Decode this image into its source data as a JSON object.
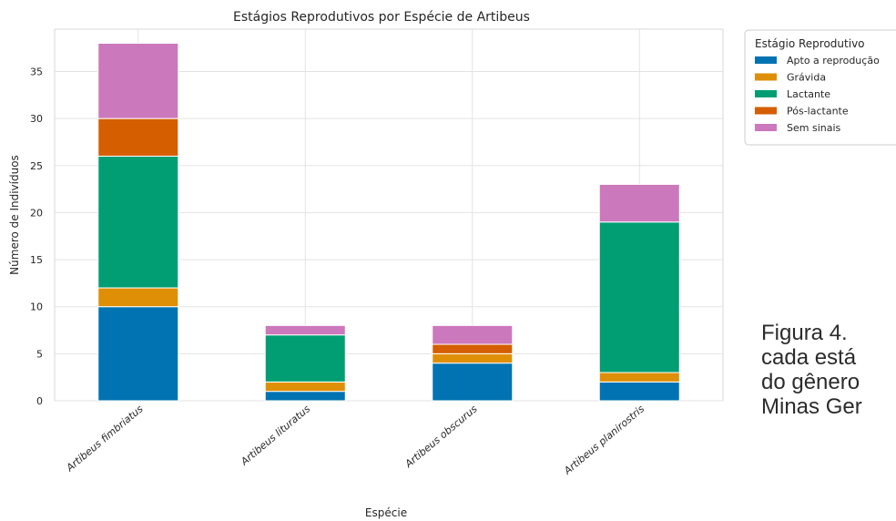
{
  "chart_data": {
    "type": "bar",
    "stacked": true,
    "title": "Estágios Reprodutivos por Espécie de Artibeus",
    "xlabel": "Espécie",
    "ylabel": "Número de Indivíduos",
    "ylim": [
      0,
      39.5
    ],
    "yticks": [
      0,
      5,
      10,
      15,
      20,
      25,
      30,
      35
    ],
    "grid": true,
    "legend_placement": "outside-top-right",
    "legend_title": "Estágio Reprodutivo",
    "categories": [
      "Artibeus fimbriatus",
      "Artibeus lituratus",
      "Artibeus obscurus",
      "Artibeus planirostris"
    ],
    "series": [
      {
        "name": "Apto a reprodução",
        "color": "#0173b2",
        "values": [
          10,
          1,
          4,
          2
        ]
      },
      {
        "name": "Grávida",
        "color": "#de8f05",
        "values": [
          2,
          1,
          1,
          1
        ]
      },
      {
        "name": "Lactante",
        "color": "#029e73",
        "values": [
          14,
          5,
          0,
          16
        ]
      },
      {
        "name": "Pós-lactante",
        "color": "#d55e00",
        "values": [
          4,
          0,
          1,
          0
        ]
      },
      {
        "name": "Sem sinais",
        "color": "#cc78bc",
        "values": [
          8,
          1,
          2,
          4
        ]
      }
    ]
  },
  "caption": {
    "lines": [
      "Figura 4.",
      "cada está",
      "do gênero",
      "Minas Ger"
    ]
  }
}
